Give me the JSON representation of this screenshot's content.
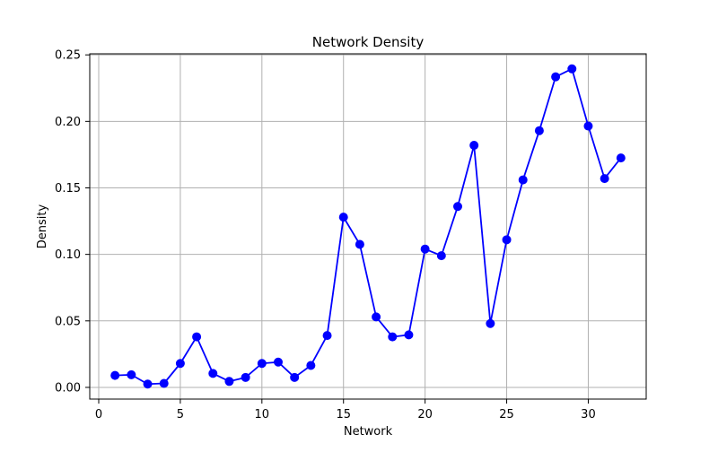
{
  "chart_data": {
    "type": "line",
    "title": "Network Density",
    "xlabel": "Network",
    "ylabel": "Density",
    "xlim": [
      -0.55,
      33.55
    ],
    "ylim": [
      -0.0088,
      0.2508
    ],
    "xticks": [
      0,
      5,
      10,
      15,
      20,
      25,
      30
    ],
    "yticks": [
      0.0,
      0.05,
      0.1,
      0.15,
      0.2,
      0.25
    ],
    "ytick_labels": [
      "0.00",
      "0.05",
      "0.10",
      "0.15",
      "0.20",
      "0.25"
    ],
    "grid": true,
    "line_color": "#0000ff",
    "marker": "circle",
    "series": [
      {
        "x": [
          1,
          2,
          3,
          4,
          5,
          6,
          7,
          8,
          9,
          10,
          11,
          12,
          13,
          14,
          15,
          16,
          17,
          18,
          19,
          20,
          21,
          22,
          23,
          24,
          25,
          26,
          27,
          28,
          29,
          30,
          31,
          32
        ],
        "values": [
          0.009,
          0.0095,
          0.0025,
          0.003,
          0.018,
          0.038,
          0.0105,
          0.0045,
          0.0075,
          0.018,
          0.019,
          0.0075,
          0.0165,
          0.039,
          0.128,
          0.1075,
          0.053,
          0.038,
          0.0395,
          0.104,
          0.099,
          0.136,
          0.182,
          0.048,
          0.111,
          0.156,
          0.193,
          0.2335,
          0.2395,
          0.1965,
          0.157,
          0.1725
        ]
      }
    ]
  }
}
